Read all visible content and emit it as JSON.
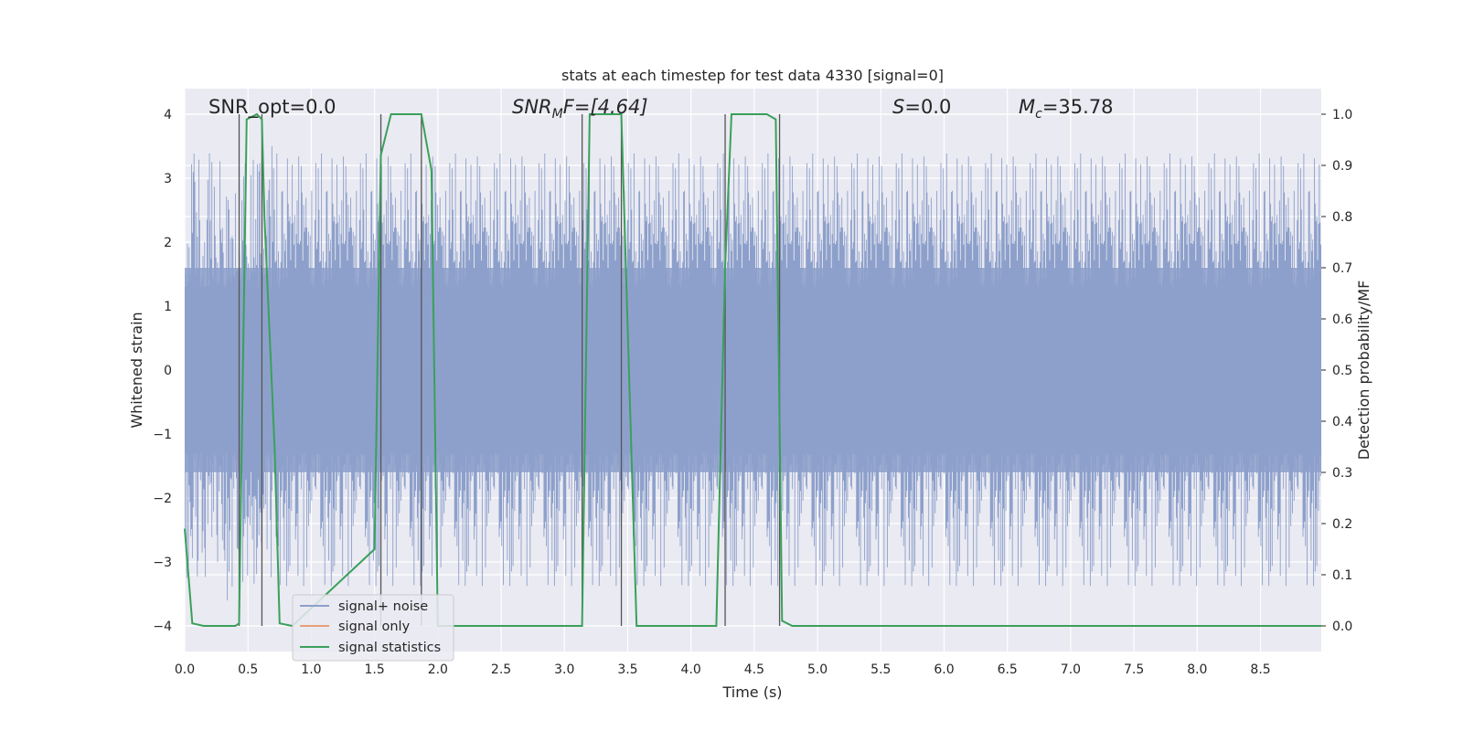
{
  "chart_data": {
    "type": "line",
    "title": "stats at each timestep for test data 4330 [signal=0]",
    "xlabel": "Time (s)",
    "ylabel": "Whitened strain",
    "y2label": "Detection probability/MF",
    "xlim": [
      0.0,
      8.98
    ],
    "ylim": [
      -4.4,
      4.4
    ],
    "y2lim": [
      -0.05,
      1.05
    ],
    "xticks": [
      "0.0",
      "0.5",
      "1.0",
      "1.5",
      "2.0",
      "2.5",
      "3.0",
      "3.5",
      "4.0",
      "4.5",
      "5.0",
      "5.5",
      "6.0",
      "6.5",
      "7.0",
      "7.5",
      "8.0",
      "8.5"
    ],
    "yticks": [
      "−4",
      "−3",
      "−2",
      "−1",
      "0",
      "1",
      "2",
      "3",
      "4"
    ],
    "y2ticks": [
      "0.0",
      "0.1",
      "0.2",
      "0.3",
      "0.4",
      "0.5",
      "0.6",
      "0.7",
      "0.8",
      "0.9",
      "1.0"
    ],
    "grid": true,
    "legend_position": "lower-left",
    "annotations": {
      "snr_opt": "SNR_opt=0.0",
      "snr_mf_sym": "SNR",
      "snr_mf_sub": "M",
      "snr_mf_rest": "F=[4.64]",
      "s_sym": "S",
      "s_rest": "=0.0",
      "mc_sym": "M",
      "mc_sub": "c",
      "mc_rest": "=35.78"
    },
    "series": [
      {
        "name": "signal+ noise",
        "color": "#8da0cb",
        "description_axis": "left",
        "noise_envelope": {
          "dense_band": [
            -1.6,
            1.6
          ],
          "spike_range": [
            -4.0,
            3.8
          ]
        }
      },
      {
        "name": "signal only",
        "color": "#e5a07a",
        "description_axis": "left",
        "values": []
      },
      {
        "name": "signal statistics",
        "color": "#3aa05a",
        "description_axis": "right",
        "x": [
          0.0,
          0.06,
          0.15,
          0.4,
          0.43,
          0.49,
          0.57,
          0.61,
          0.63,
          0.71,
          0.75,
          0.85,
          1.5,
          1.55,
          1.63,
          1.87,
          1.95,
          2.0,
          2.5,
          3.14,
          3.2,
          3.45,
          3.57,
          4.2,
          4.27,
          4.32,
          4.6,
          4.67,
          4.72,
          4.8,
          8.98
        ],
        "values": [
          0.19,
          0.005,
          0.0,
          0.0,
          0.005,
          0.99,
          1.0,
          0.99,
          0.8,
          0.35,
          0.005,
          0.0,
          0.15,
          0.92,
          1.0,
          1.0,
          0.89,
          0.0,
          0.0,
          0.0,
          1.0,
          1.0,
          0.0,
          0.0,
          0.7,
          1.0,
          1.0,
          0.99,
          0.01,
          0.0,
          0.0
        ]
      }
    ],
    "vlines_x": [
      0.43,
      0.61,
      1.55,
      1.87,
      3.14,
      3.45,
      4.27,
      4.7
    ],
    "vline_color": "#555555"
  }
}
